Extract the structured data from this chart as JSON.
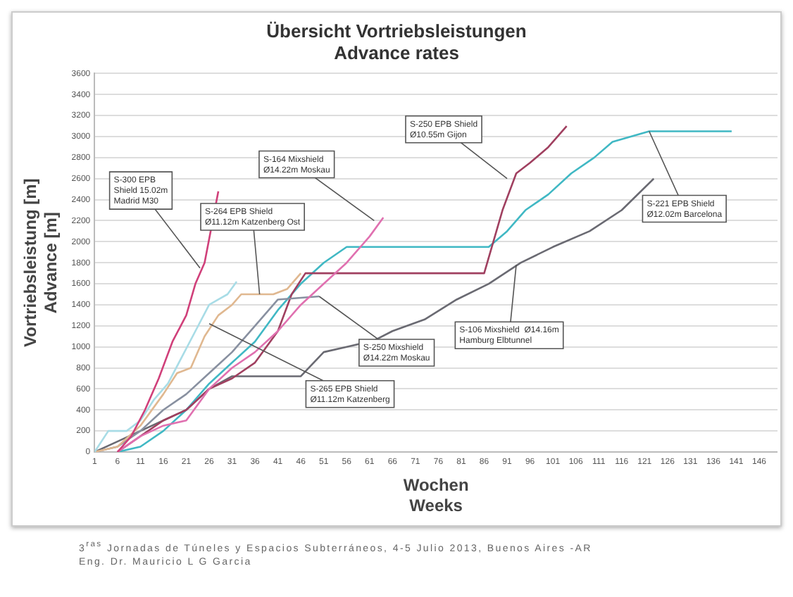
{
  "chart_data": {
    "type": "line",
    "title": "Übersicht Vortriebsleistungen",
    "subtitle": "Advance rates",
    "xlabel": "Wochen\nWeeks",
    "ylabel": "Vortriebsleistung [m]\nAdvance [m]",
    "xlim": [
      1,
      150
    ],
    "xticks": [
      1,
      6,
      11,
      16,
      21,
      26,
      31,
      36,
      41,
      46,
      51,
      56,
      61,
      66,
      71,
      76,
      81,
      86,
      91,
      96,
      101,
      106,
      111,
      116,
      121,
      126,
      131,
      136,
      141,
      146
    ],
    "ylim": [
      0,
      3600
    ],
    "yticks": [
      0,
      200,
      400,
      600,
      800,
      1000,
      1200,
      1400,
      1600,
      1800,
      2000,
      2200,
      2400,
      2600,
      2800,
      3000,
      3200,
      3400,
      3600
    ],
    "grid": "y",
    "legend": false,
    "marker": "none",
    "line_style": "solid",
    "series": [
      {
        "color": "#d0407a",
        "x": [
          6,
          9,
          12,
          15,
          18,
          21,
          23,
          25,
          28
        ],
        "values": [
          0,
          150,
          400,
          700,
          1050,
          1300,
          1600,
          1800,
          2480
        ]
      },
      {
        "color": "#a8dce6",
        "x": [
          1,
          4,
          8,
          11,
          14,
          17,
          20,
          23,
          26,
          28,
          30,
          32
        ],
        "values": [
          0,
          200,
          200,
          300,
          500,
          650,
          900,
          1150,
          1400,
          1450,
          1500,
          1620
        ]
      },
      {
        "color": "#e0b890",
        "x": [
          1,
          6,
          11,
          16,
          19,
          22,
          25,
          28,
          31,
          33,
          40,
          43,
          46
        ],
        "values": [
          0,
          50,
          250,
          550,
          750,
          800,
          1100,
          1300,
          1400,
          1500,
          1500,
          1550,
          1700
        ]
      },
      {
        "color": "#e070b0",
        "x": [
          6,
          11,
          16,
          21,
          26,
          31,
          36,
          41,
          46,
          51,
          56,
          61,
          64
        ],
        "values": [
          0,
          150,
          250,
          300,
          600,
          800,
          950,
          1150,
          1400,
          1600,
          1800,
          2050,
          2230
        ]
      },
      {
        "color": "#8890a0",
        "x": [
          1,
          6,
          11,
          16,
          21,
          26,
          31,
          36,
          41,
          50
        ],
        "values": [
          0,
          50,
          200,
          400,
          550,
          750,
          950,
          1200,
          1450,
          1480
        ]
      },
      {
        "color": "#a04060",
        "x": [
          6,
          11,
          16,
          21,
          26,
          31,
          36,
          41,
          44,
          47,
          86,
          88,
          90,
          93,
          96,
          100,
          104
        ],
        "values": [
          0,
          150,
          300,
          400,
          600,
          700,
          850,
          1150,
          1500,
          1700,
          1700,
          2000,
          2300,
          2650,
          2750,
          2900,
          3100
        ]
      },
      {
        "color": "#40b8c4",
        "x": [
          6,
          11,
          16,
          21,
          26,
          31,
          36,
          41,
          46,
          51,
          56,
          87,
          91,
          95,
          100,
          105,
          110,
          114,
          118,
          122,
          140
        ],
        "values": [
          0,
          50,
          200,
          400,
          650,
          850,
          1050,
          1350,
          1600,
          1800,
          1950,
          1950,
          2100,
          2300,
          2450,
          2650,
          2800,
          2950,
          3000,
          3050,
          3050
        ]
      },
      {
        "color": "#6a6a72",
        "x": [
          1,
          6,
          11,
          16,
          21,
          26,
          31,
          46,
          51,
          56,
          62,
          66,
          73,
          80,
          87,
          94,
          101,
          109,
          116,
          123
        ],
        "values": [
          0,
          100,
          200,
          300,
          400,
          600,
          720,
          720,
          950,
          1000,
          1060,
          1150,
          1260,
          1450,
          1600,
          1800,
          1950,
          2100,
          2300,
          2600
        ]
      }
    ],
    "annotations": [
      {
        "text": "S-300 EPB\nShield 15.02m\nMadrid M30",
        "x": 24,
        "y": 1750
      },
      {
        "text": "S-164 Mixshield\nØ14.22m Moskau",
        "x": 62,
        "y": 2200
      },
      {
        "text": "S-264 EPB Shield\nØ11.12m Katzenberg Ost",
        "x": 37,
        "y": 1500
      },
      {
        "text": "S-265 EPB Shield\nØ11.12m Katzenberg",
        "x": 26,
        "y": 1220
      },
      {
        "text": "S-250 Mixshield\nØ14.22m Moskau",
        "x": 50,
        "y": 1480
      },
      {
        "text": "S-106 Mixshield  Ø14.16m\nHamburg Elbtunnel",
        "x": 93,
        "y": 1780
      },
      {
        "text": "S-250 EPB Shield\nØ10.55m Gijon",
        "x": 91,
        "y": 2600
      },
      {
        "text": "S-221 EPB Shield\nØ12.02m Barcelona",
        "x": 122,
        "y": 3050
      },
      "3$^{ras}$ Jornadas de Túneles y Espacios Subterráneos, 4-5 Julio 2013, Buenos Aires -AR",
      "Eng. Dr. Mauricio L G Garcia"
    ]
  }
}
